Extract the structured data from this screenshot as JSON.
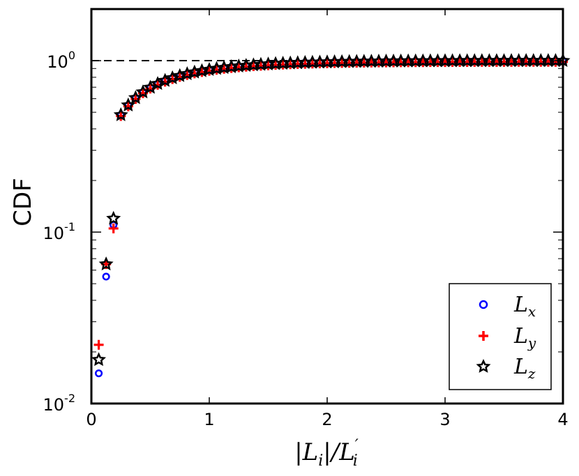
{
  "chart_data": {
    "type": "scatter",
    "title": "",
    "xlabel": "|L_i|/L'_i",
    "ylabel": "CDF",
    "xlim": [
      0,
      4
    ],
    "ylim": [
      0.01,
      2.0
    ],
    "yscale": "log",
    "x_ticks": [
      "0",
      "1",
      "2",
      "3",
      "4"
    ],
    "y_ticks": [
      {
        "base": "10",
        "exp": "-2",
        "value": 0.01
      },
      {
        "base": "10",
        "exp": "-1",
        "value": 0.1
      },
      {
        "base": "10",
        "exp": "0",
        "value": 1
      }
    ],
    "reference_line": {
      "y": 1,
      "style": "dashed",
      "color": "#000000"
    },
    "legend_position": "bottom-right",
    "series": [
      {
        "name": "L_x",
        "marker": "circle",
        "color": "#0000ff",
        "x": [
          0.0625,
          0.125,
          0.1875
        ],
        "y": [
          0.015,
          0.055,
          0.11
        ]
      },
      {
        "name": "L_y",
        "marker": "plus",
        "color": "#ff0000",
        "x": [
          0.0625,
          0.125,
          0.1875
        ],
        "y": [
          0.022,
          0.065,
          0.105
        ]
      },
      {
        "name": "L_z",
        "marker": "star",
        "color": "#000000",
        "x": [
          0.0625,
          0.125,
          0.1875
        ],
        "y": [
          0.018,
          0.065,
          0.12
        ]
      }
    ],
    "continuation": {
      "x_start": 0.25,
      "x_end": 4.0,
      "x_step": 0.0625,
      "model": "cdf_saturating",
      "series_offsets": {
        "L_x": 1.0,
        "L_y": 0.985,
        "L_z": 1.0
      }
    }
  },
  "legend": {
    "items": [
      {
        "base": "L",
        "sub": "x"
      },
      {
        "base": "L",
        "sub": "y"
      },
      {
        "base": "L",
        "sub": "z"
      }
    ]
  },
  "axes": {
    "ylabel": "CDF",
    "xlabel_parts": [
      "|L",
      "i",
      "|/L",
      "′",
      "i"
    ]
  }
}
